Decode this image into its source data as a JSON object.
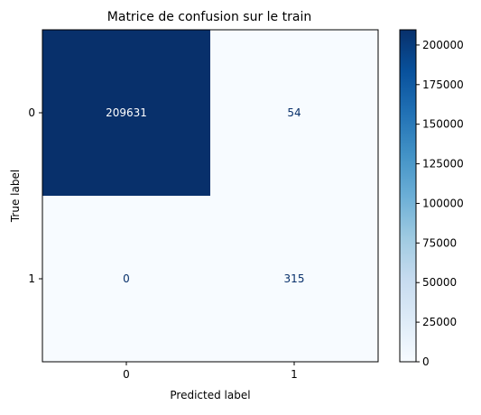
{
  "chart_data": {
    "type": "heatmap",
    "title": "Matrice de confusion sur le train",
    "xlabel": "Predicted label",
    "ylabel": "True label",
    "x_categories": [
      "0",
      "1"
    ],
    "y_categories": [
      "0",
      "1"
    ],
    "values": [
      [
        209631,
        54
      ],
      [
        0,
        315
      ]
    ],
    "cell_labels": [
      [
        "209631",
        "54"
      ],
      [
        "0",
        "315"
      ]
    ],
    "colormap": "Blues",
    "colorbar": {
      "vmin": 0,
      "vmax": 209631,
      "ticks": [
        0,
        25000,
        50000,
        75000,
        100000,
        125000,
        150000,
        175000,
        200000
      ],
      "tick_labels": [
        "0",
        "25000",
        "50000",
        "75000",
        "100000",
        "125000",
        "150000",
        "175000",
        "200000"
      ]
    },
    "colors": {
      "min": "#f7fbff",
      "max": "#08306b",
      "text_on_dark": "#ffffff",
      "text_on_light": "#08306b"
    }
  }
}
